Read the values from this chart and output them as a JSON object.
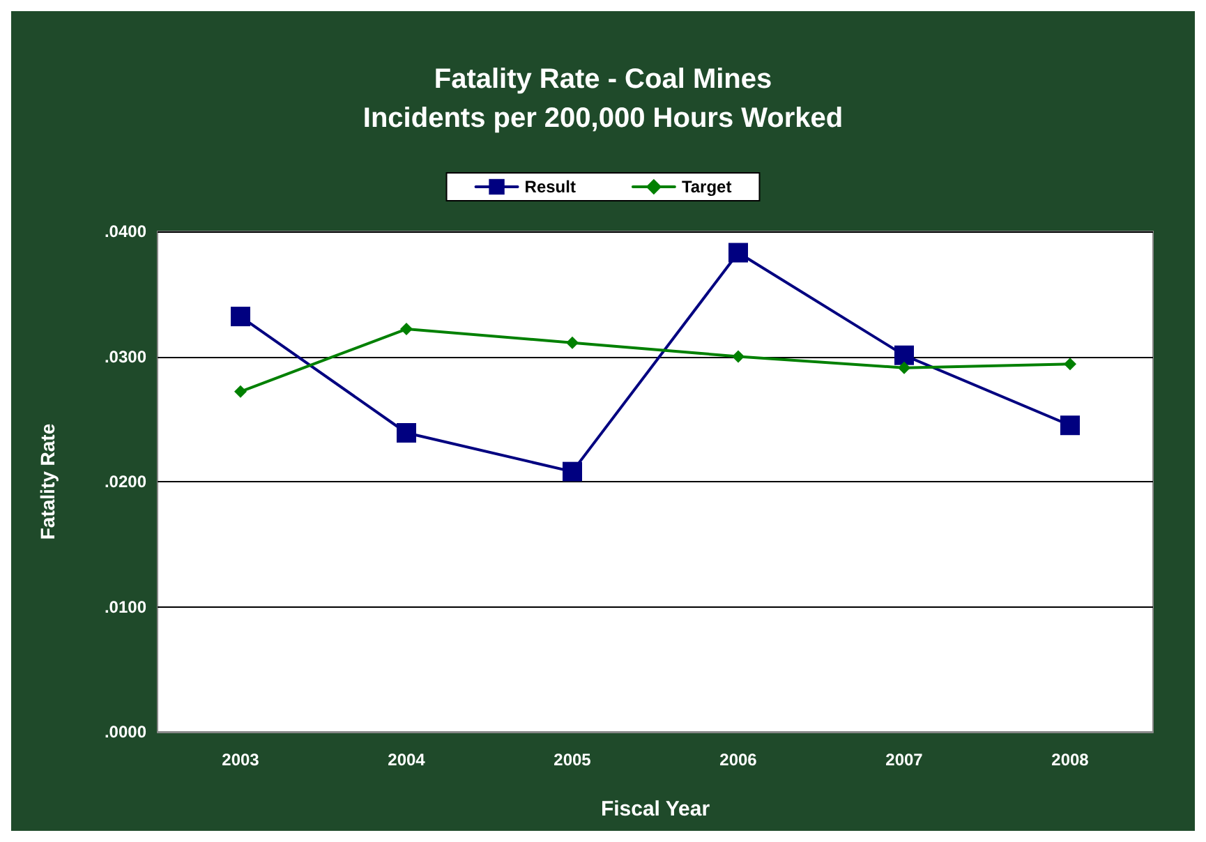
{
  "chart_data": {
    "type": "line",
    "title": "Fatality Rate - Coal Mines\nIncidents per 200,000 Hours Worked",
    "xlabel": "Fiscal Year",
    "ylabel": "Fatality Rate",
    "categories": [
      "2003",
      "2004",
      "2005",
      "2006",
      "2007",
      "2008"
    ],
    "series": [
      {
        "name": "Result",
        "color": "#000080",
        "marker": "square",
        "values": [
          0.0332,
          0.0239,
          0.0208,
          0.0383,
          0.0301,
          0.0245
        ]
      },
      {
        "name": "Target",
        "color": "#008000",
        "marker": "diamond",
        "values": [
          0.0272,
          0.0322,
          0.0311,
          0.03,
          0.0291,
          0.0294
        ]
      }
    ],
    "ylim": [
      0,
      0.04
    ],
    "yticks": [
      {
        "value": 0,
        "label": ".0000"
      },
      {
        "value": 0.01,
        "label": ".0100"
      },
      {
        "value": 0.02,
        "label": ".0200"
      },
      {
        "value": 0.03,
        "label": ".0300"
      },
      {
        "value": 0.04,
        "label": ".0400"
      }
    ],
    "grid": "y",
    "legend": "top",
    "line_style": "solid"
  }
}
